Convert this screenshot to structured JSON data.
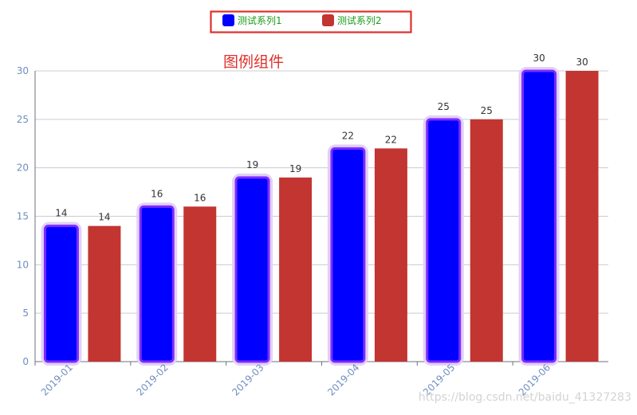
{
  "chart_data": {
    "type": "bar",
    "title": "图例组件",
    "categories": [
      "2019-01",
      "2019-02",
      "2019-03",
      "2019-04",
      "2019-05",
      "2019-06"
    ],
    "series": [
      {
        "name": "测试系列1",
        "values": [
          14,
          16,
          19,
          22,
          25,
          30
        ],
        "color": "#0000ff",
        "highlight": "#7b2cff"
      },
      {
        "name": "测试系列2",
        "values": [
          14,
          16,
          19,
          22,
          25,
          30
        ],
        "color": "#c23531"
      }
    ],
    "ylim": [
      0,
      30
    ],
    "yticks": [
      0,
      5,
      10,
      15,
      20,
      25,
      30
    ],
    "grid": true,
    "legend": "top-center",
    "colors": {
      "title": "#e0302a",
      "legend_text": "#1a9b1a",
      "legend_border": "#e0302a",
      "axis": "#6e7079",
      "tick_label": "#6f8fbf",
      "grid": "#c8ccd4",
      "data_label": "#333333",
      "watermark": "#d3d3d3"
    }
  },
  "watermark": "https://blog.csdn.net/baidu_41327283"
}
